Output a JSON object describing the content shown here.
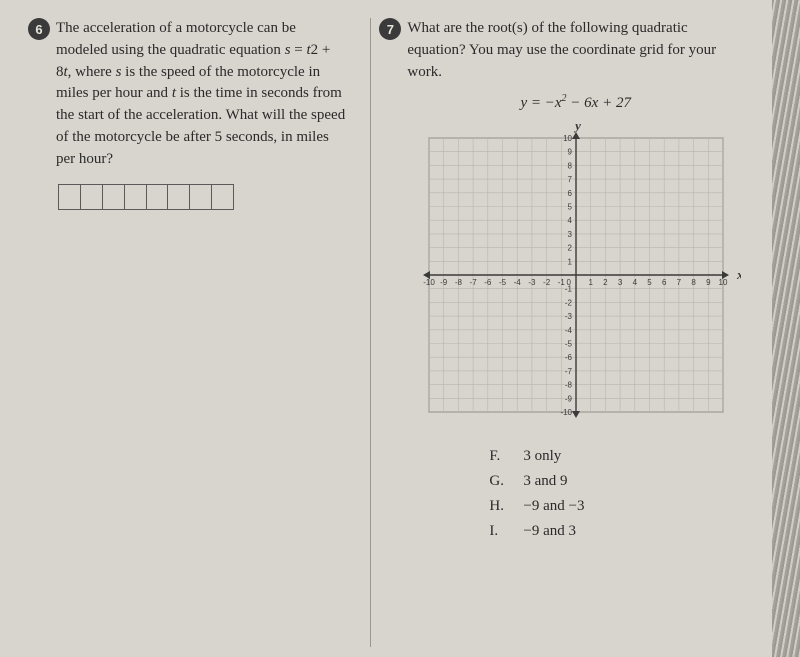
{
  "q6": {
    "number": "6",
    "text": "The acceleration of a motorcycle can be modeled using the quadratic equation s = t² + 8t, where s is the speed of the motorcycle in miles per hour and t is the time in seconds from the start of the acceleration. What will the speed of the motorcycle be after 5 seconds, in miles per hour?",
    "answer_cells": 8
  },
  "q7": {
    "number": "7",
    "text": "What are the root(s) of the following quadratic equation? You may use the coordinate grid for your work.",
    "equation_display": "y = −x² − 6x + 27",
    "grid": {
      "xmin": -10,
      "xmax": 10,
      "ymin": -10,
      "ymax": 10,
      "xlabel": "x",
      "ylabel": "y",
      "tick_values": [
        1,
        2,
        3,
        4,
        5,
        6,
        7,
        8,
        9,
        10
      ],
      "neg_tick_values": [
        -10,
        -9,
        -8,
        -7,
        -6,
        -5,
        -4,
        -3,
        -2,
        -1
      ],
      "grid_color": "#b8b5ac",
      "axis_color": "#3a3a3a",
      "label_fontsize": 8
    },
    "choices": [
      {
        "letter": "F.",
        "text": "3 only"
      },
      {
        "letter": "G.",
        "text": "3 and 9"
      },
      {
        "letter": "H.",
        "text": "−9 and −3"
      },
      {
        "letter": "I.",
        "text": "−9 and 3"
      }
    ]
  }
}
